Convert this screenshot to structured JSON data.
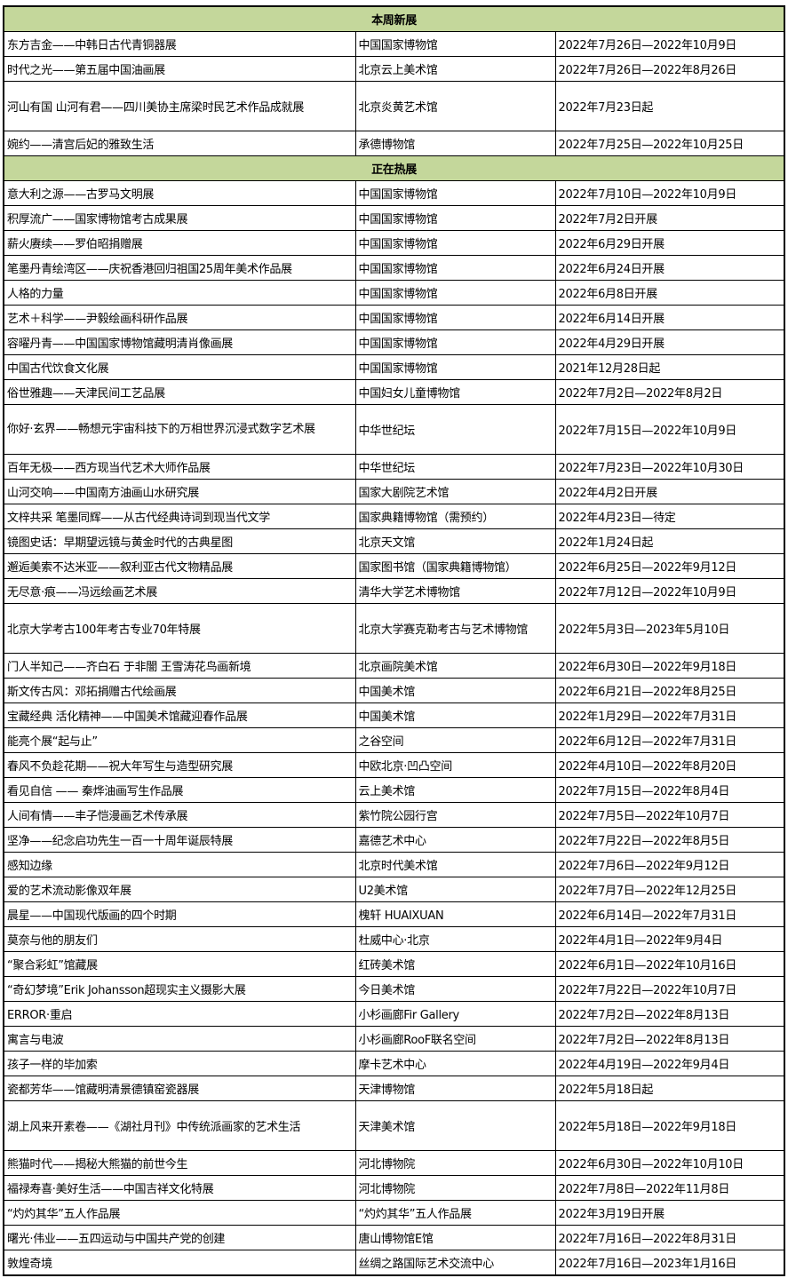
{
  "colors": {
    "section_header_bg": "#c4d79b",
    "border": "#000000"
  },
  "sections": [
    {
      "title": "本周新展",
      "rows": [
        {
          "name": "东方吉金——中韩日古代青铜器展",
          "venue": "中国国家博物馆",
          "dates": "2022年7月26日—2022年10月9日"
        },
        {
          "name": "时代之光——第五届中国油画展",
          "venue": "北京云上美术馆",
          "dates": "2022年7月26日—2022年8月26日"
        },
        {
          "name": "河山有国 山河有君——四川美协主席梁时民艺术作品成就展",
          "venue": "北京炎黄艺术馆",
          "dates": "2022年7月23日起",
          "tall": true
        },
        {
          "name": "婉约——清宫后妃的雅致生活",
          "venue": "承德博物馆",
          "dates": "2022年7月25日—2022年10月25日"
        }
      ]
    },
    {
      "title": "正在热展",
      "rows": [
        {
          "name": "意大利之源——古罗马文明展",
          "venue": "中国国家博物馆",
          "dates": "2022年7月10日—2022年10月9日"
        },
        {
          "name": "积厚流广——国家博物馆考古成果展",
          "venue": "中国国家博物馆",
          "dates": "2022年7月2日开展"
        },
        {
          "name": "薪火赓续——罗伯昭捐赠展",
          "venue": "中国国家博物馆",
          "dates": "2022年6月29日开展"
        },
        {
          "name": "笔墨丹青绘湾区——庆祝香港回归祖国25周年美术作品展",
          "venue": "中国国家博物馆",
          "dates": "2022年6月24日开展"
        },
        {
          "name": "人格的力量",
          "venue": "中国国家博物馆",
          "dates": "2022年6月8日开展"
        },
        {
          "name": "艺术＋科学——尹毅绘画科研作品展",
          "venue": "中国国家博物馆",
          "dates": "2022年6月14日开展"
        },
        {
          "name": "容曜丹青——中国国家博物馆藏明清肖像画展",
          "venue": "中国国家博物馆",
          "dates": "2022年4月29日开展"
        },
        {
          "name": "中国古代饮食文化展",
          "venue": "中国国家博物馆",
          "dates": "2021年12月28日起"
        },
        {
          "name": "俗世雅趣——天津民间工艺品展",
          "venue": "中国妇女儿童博物馆",
          "dates": "2022年7月2日—2022年8月2日"
        },
        {
          "name": "你好·玄界——畅想元宇宙科技下的万相世界沉浸式数字艺术展",
          "venue": "中华世纪坛",
          "dates": "2022年7月15日—2022年10月9日",
          "tall": true,
          "wrap": true
        },
        {
          "name": "百年无极——西方现当代艺术大师作品展",
          "venue": "中华世纪坛",
          "dates": "2022年7月23日—2022年10月30日"
        },
        {
          "name": "山河交响——中国南方油画山水研究展",
          "venue": "国家大剧院艺术馆",
          "dates": "2022年4月2日开展"
        },
        {
          "name": "文梓共采 笔墨同辉——从古代经典诗词到现当代文学",
          "venue": "国家典籍博物馆（需预约）",
          "dates": "2022年4月23日—待定"
        },
        {
          "name": "镜图史话：早期望远镜与黄金时代的古典星图",
          "venue": "北京天文馆",
          "dates": "2022年1月24日起"
        },
        {
          "name": "邂逅美索不达米亚——叙利亚古代文物精品展",
          "venue": "国家图书馆（国家典籍博物馆）",
          "dates": "2022年6月25日—2022年9月12日"
        },
        {
          "name": "无尽意·痕——冯远绘画艺术展",
          "venue": "清华大学艺术博物馆",
          "dates": "2022年7月12日—2022年10月9日"
        },
        {
          "name": "北京大学考古100年考古专业70年特展",
          "venue": "北京大学赛克勒考古与艺术博物馆",
          "dates": "2022年5月3日—2023年5月10日",
          "tall": true
        },
        {
          "name": "门人半知己——齐白石 于非闇 王雪涛花鸟画新境",
          "venue": "北京画院美术馆",
          "dates": "2022年6月30日—2022年9月18日"
        },
        {
          "name": "斯文传古风：邓拓捐赠古代绘画展",
          "venue": "中国美术馆",
          "dates": "2022年6月21日—2022年8月25日"
        },
        {
          "name": "宝藏经典 活化精神——中国美术馆藏迎春作品展",
          "venue": "中国美术馆",
          "dates": "2022年1月29日—2022年7月31日"
        },
        {
          "name": "能亮个展“起与止”",
          "venue": "之谷空间",
          "dates": "2022年6月12日—2022年7月31日"
        },
        {
          "name": "春风不负趁花期——祝大年写生与造型研究展",
          "venue": "中欧北京·凹凸空间",
          "dates": "2022年4月10日—2022年8月20日"
        },
        {
          "name": "看见自信 —— 秦烨油画写生作品展",
          "venue": "云上美术馆",
          "dates": "2022年7月15日—2022年8月4日"
        },
        {
          "name": "人间有情——丰子恺漫画艺术传承展",
          "venue": "紫竹院公园行宫",
          "dates": "2022年7月5日—2022年10月7日"
        },
        {
          "name": "坚净——纪念启功先生一百一十周年诞辰特展",
          "venue": "嘉德艺术中心",
          "dates": "2022年7月22日—2022年8月5日"
        },
        {
          "name": "感知边缘",
          "venue": "北京时代美术馆",
          "dates": "2022年7月6日—2022年9月12日"
        },
        {
          "name": "爱的艺术流动影像双年展",
          "venue": "U2美术馆",
          "dates": "2022年7月7日—2022年12月25日"
        },
        {
          "name": "晨星——中国现代版画的四个时期",
          "venue": "槐轩 HUAIXUAN",
          "dates": "2022年6月14日—2022年7月31日"
        },
        {
          "name": "莫奈与他的朋友们",
          "venue": "杜威中心·北京",
          "dates": "2022年4月1日—2022年9月4日"
        },
        {
          "name": "“聚合彩虹”馆藏展",
          "venue": "红砖美术馆",
          "dates": "2022年6月1日—2022年10月16日"
        },
        {
          "name": "“奇幻梦境”Erik Johansson超现实主义摄影大展",
          "venue": "今日美术馆",
          "dates": "2022年7月22日—2022年10月7日"
        },
        {
          "name": "ERROR·重启",
          "venue": "小杉画廊Fir Gallery",
          "dates": "2022年7月2日—2022年8月13日"
        },
        {
          "name": "寓言与电波",
          "venue": "小杉画廊RooF联名空间",
          "dates": "2022年7月2日—2022年8月13日"
        },
        {
          "name": "孩子一样的毕加索",
          "venue": "摩卡艺术中心",
          "dates": "2022年4月19日—2022年9月4日"
        },
        {
          "name": "瓷都芳华——馆藏明清景德镇窑瓷器展",
          "venue": "天津博物馆",
          "dates": "2022年5月18日起"
        },
        {
          "name": "湖上风来开素卷——《湖社月刊》中传统派画家的艺术生活",
          "venue": "天津美术馆",
          "dates": "2022年5月18日—2022年9月18日",
          "tall": true
        },
        {
          "name": "熊猫时代——揭秘大熊猫的前世今生",
          "venue": "河北博物院",
          "dates": "2022年6月30日—2022年10月10日"
        },
        {
          "name": "福禄寿喜·美好生活——中国吉祥文化特展",
          "venue": "河北博物院",
          "dates": "2022年7月8日—2022年11月8日"
        },
        {
          "name": "“灼灼其华”五人作品展",
          "venue": "“灼灼其华”五人作品展",
          "dates": "2022年3月19日开展"
        },
        {
          "name": "曙光·伟业——五四运动与中国共产党的创建",
          "venue": "唐山博物馆E馆",
          "dates": "2022年7月16日—2022年8月31日"
        },
        {
          "name": "敦煌奇境",
          "venue": "丝绸之路国际艺术交流中心",
          "dates": "2022年7月16日—2023年1月16日"
        }
      ]
    }
  ]
}
